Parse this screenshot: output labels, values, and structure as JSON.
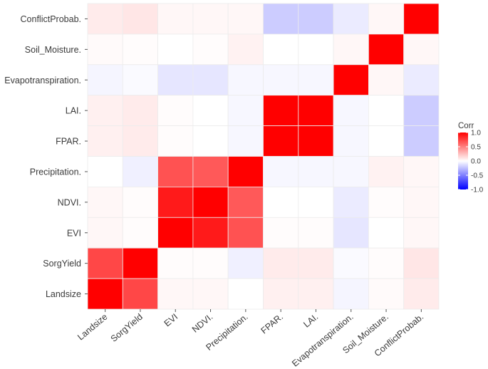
{
  "chart_data": {
    "type": "heatmap",
    "title": "",
    "xlabel": "",
    "ylabel": "",
    "x_labels": [
      "Landsize",
      "SorgYield",
      "EVI",
      "NDVI.",
      "Precipitation.",
      "FPAR.",
      "LAI.",
      "Evapotranspiration.",
      "Soil_Moisture.",
      "ConflictProbab."
    ],
    "y_labels_top_to_bottom": [
      "ConflictProbab.",
      "Soil_Moisture.",
      "Evapotranspiration.",
      "LAI.",
      "FPAR.",
      "Precipitation.",
      "NDVI.",
      "EVI",
      "SorgYield",
      "Landsize"
    ],
    "values": [
      [
        0.08,
        0.1,
        0.03,
        0.03,
        0.03,
        -0.2,
        -0.2,
        -0.08,
        0.03,
        1.0
      ],
      [
        0.02,
        0.01,
        0.0,
        0.01,
        0.05,
        0.0,
        0.0,
        0.03,
        1.0,
        0.03
      ],
      [
        -0.04,
        -0.02,
        -0.1,
        -0.1,
        -0.03,
        -0.03,
        -0.03,
        1.0,
        0.03,
        -0.08
      ],
      [
        0.06,
        0.08,
        0.01,
        0.0,
        -0.03,
        1.0,
        1.0,
        -0.03,
        0.0,
        -0.2
      ],
      [
        0.06,
        0.08,
        0.01,
        0.0,
        -0.03,
        1.0,
        1.0,
        -0.03,
        0.0,
        -0.2
      ],
      [
        0.0,
        -0.06,
        0.68,
        0.65,
        1.0,
        -0.03,
        -0.03,
        -0.03,
        0.05,
        0.03
      ],
      [
        0.03,
        0.01,
        0.9,
        1.0,
        0.65,
        0.0,
        0.0,
        -0.08,
        0.01,
        0.03
      ],
      [
        0.03,
        0.01,
        1.0,
        0.9,
        0.68,
        0.01,
        0.01,
        -0.1,
        0.0,
        0.03
      ],
      [
        0.72,
        1.0,
        0.01,
        0.01,
        -0.06,
        0.08,
        0.08,
        -0.02,
        0.01,
        0.1
      ],
      [
        1.0,
        0.72,
        0.03,
        0.03,
        0.0,
        0.06,
        0.06,
        -0.04,
        0.02,
        0.08
      ]
    ],
    "legend": {
      "title": "Corr",
      "ticks": [
        1.0,
        0.5,
        0.0,
        -0.5,
        -1.0
      ],
      "tick_labels": [
        "1.0",
        "0.5",
        "0.0",
        "-0.5",
        "-1.0"
      ],
      "range": [
        -1.0,
        1.0
      ],
      "position": "right"
    },
    "colors": {
      "high": "#ff0000",
      "mid": "#ffffff",
      "low": "#0000ff",
      "border": "#ececec"
    }
  }
}
